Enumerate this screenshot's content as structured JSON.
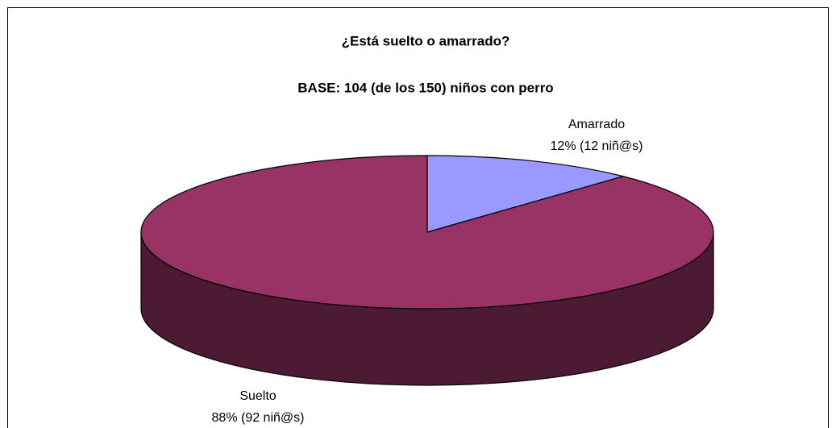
{
  "chart_data": {
    "type": "pie3d",
    "title": "¿Está suelto o amarrado?",
    "subtitle": "BASE: 104 (de los 150) niños con perro",
    "categories": [
      "Amarrado",
      "Suelto"
    ],
    "values": [
      12,
      88
    ],
    "value_labels": [
      "12% (12 niñ@s)",
      "88% (92 niñ@s)"
    ],
    "colors": [
      "#9999ff",
      "#993366"
    ],
    "side_colors": [
      "#4d4d80",
      "#4d1a33"
    ]
  }
}
